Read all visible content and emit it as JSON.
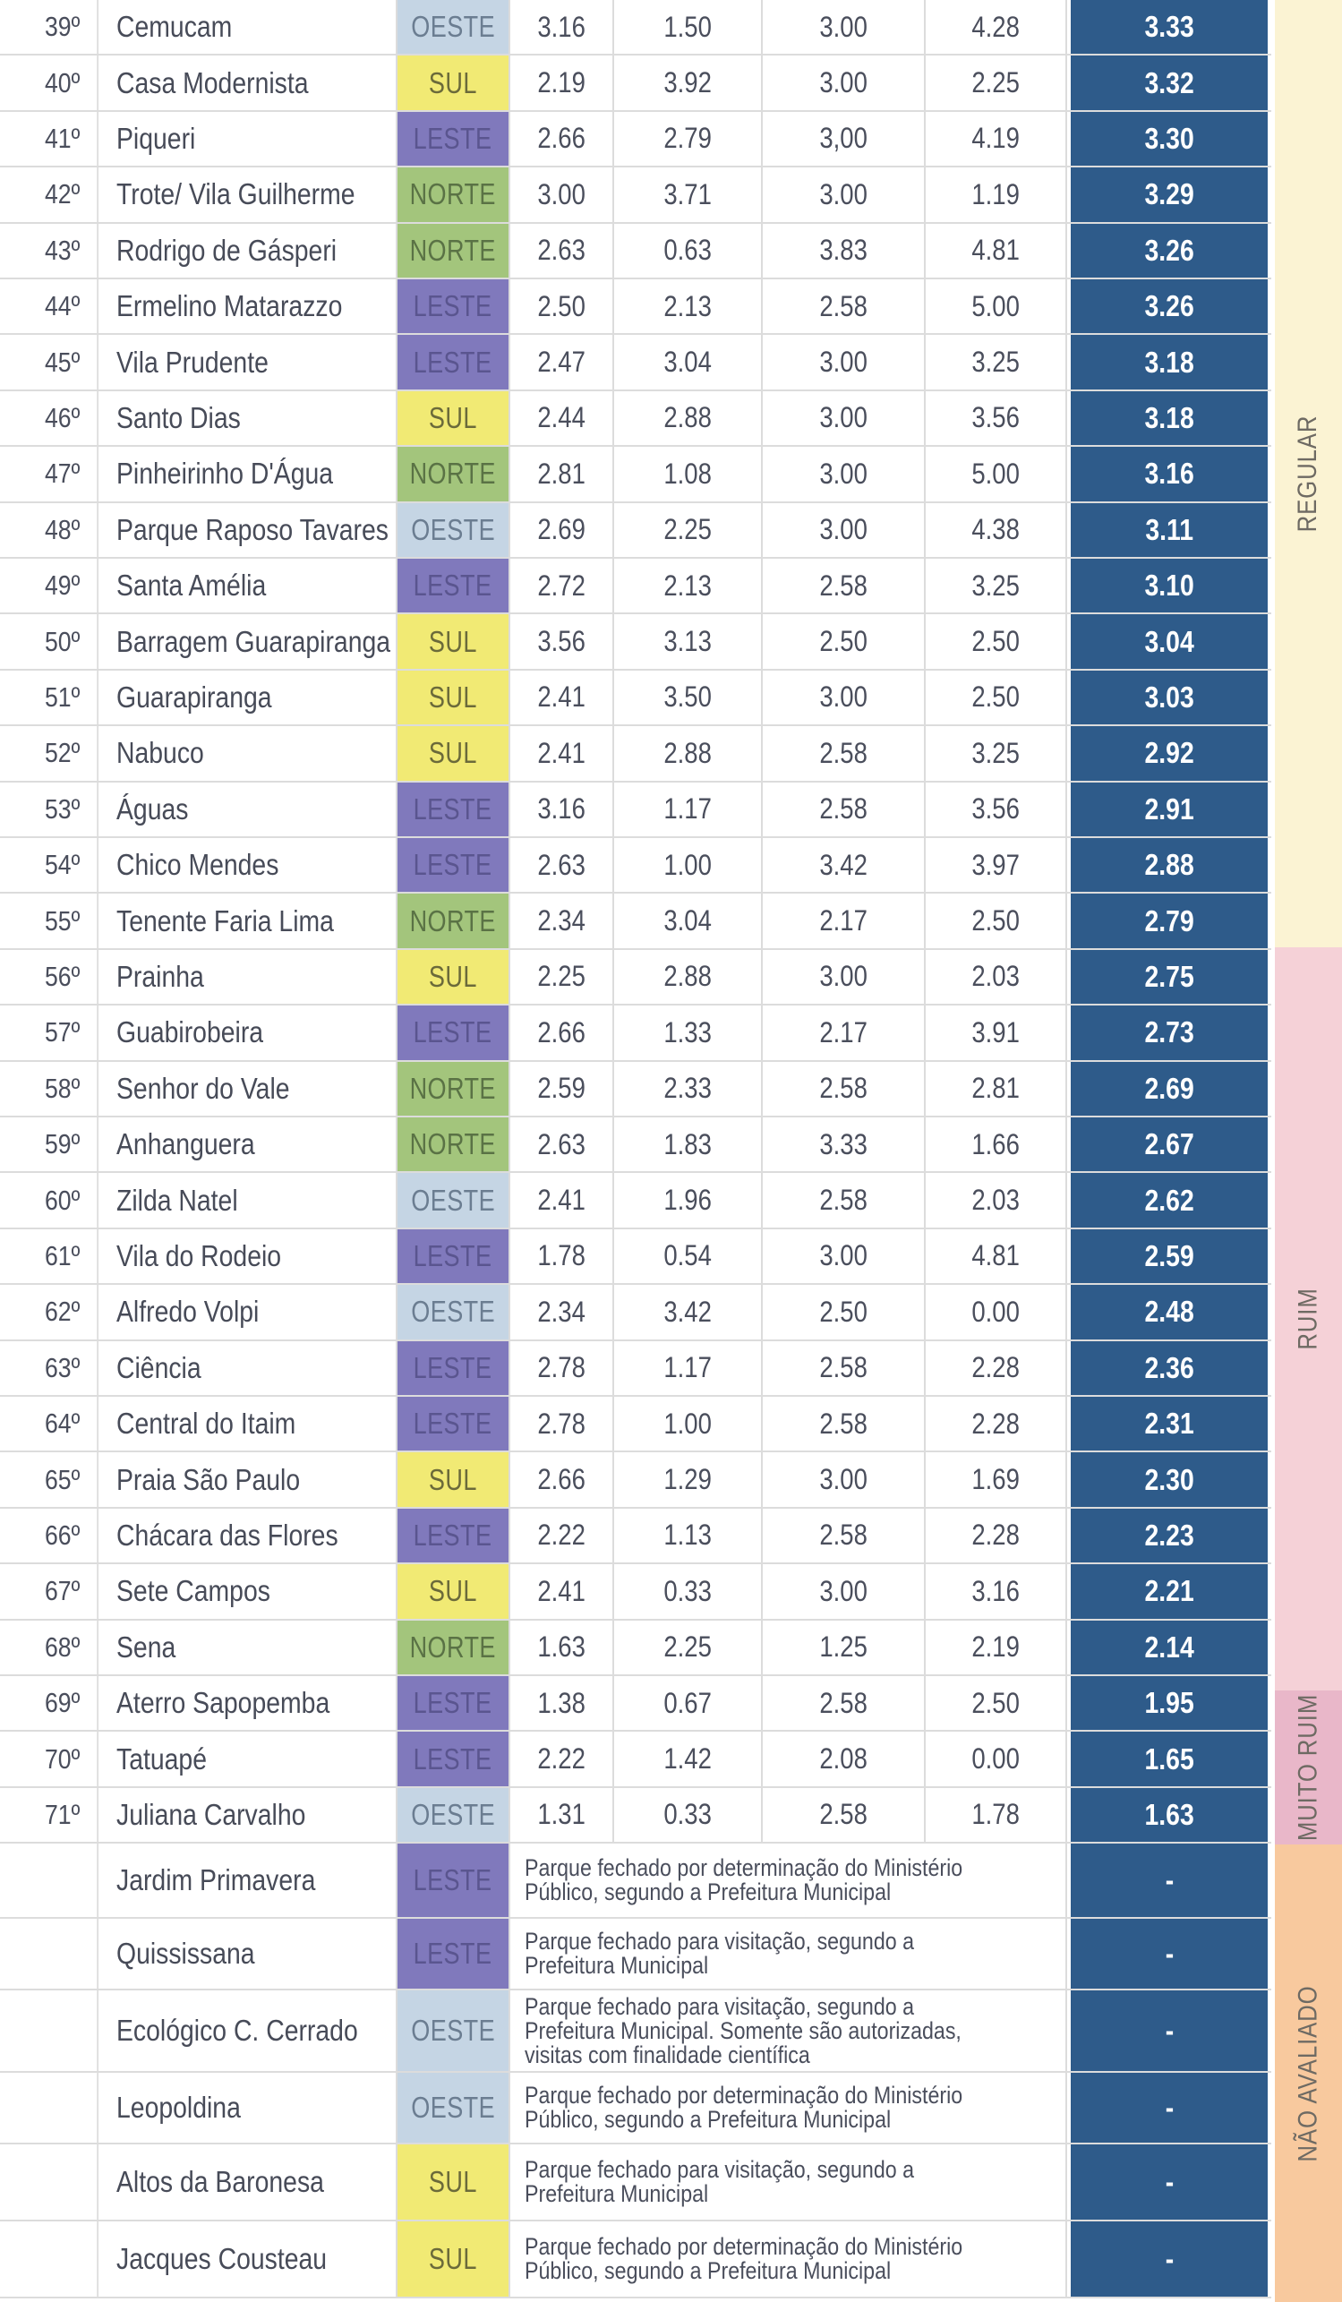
{
  "colors": {
    "oeste": "#c5d5e4",
    "sul": "#f1ea74",
    "leste": "#8079bc",
    "norte": "#a3c57c",
    "total_cell": "#2e5b8a",
    "band_regular": "#fbf3d3",
    "band_ruim": "#f5d1d7",
    "band_muito_ruim": "#e9b7c9",
    "band_nao_avaliado": "#f8c99e"
  },
  "ranked_rows": [
    {
      "rank": "39º",
      "name": "Cemucam",
      "zone": "OESTE",
      "zone_class": "oeste",
      "s1": "3.16",
      "s2": "1.50",
      "s3": "3.00",
      "s4": "4.28",
      "total": "3.33"
    },
    {
      "rank": "40º",
      "name": "Casa Modernista",
      "zone": "SUL",
      "zone_class": "sul",
      "s1": "2.19",
      "s2": "3.92",
      "s3": "3.00",
      "s4": "2.25",
      "total": "3.32"
    },
    {
      "rank": "41º",
      "name": "Piqueri",
      "zone": "LESTE",
      "zone_class": "leste",
      "s1": "2.66",
      "s2": "2.79",
      "s3": "3,00",
      "s4": "4.19",
      "total": "3.30"
    },
    {
      "rank": "42º",
      "name": "Trote/ Vila Guilherme",
      "zone": "NORTE",
      "zone_class": "norte",
      "s1": "3.00",
      "s2": "3.71",
      "s3": "3.00",
      "s4": "1.19",
      "total": "3.29"
    },
    {
      "rank": "43º",
      "name": "Rodrigo de Gásperi",
      "zone": "NORTE",
      "zone_class": "norte",
      "s1": "2.63",
      "s2": "0.63",
      "s3": "3.83",
      "s4": "4.81",
      "total": "3.26"
    },
    {
      "rank": "44º",
      "name": "Ermelino Matarazzo",
      "zone": "LESTE",
      "zone_class": "leste",
      "s1": "2.50",
      "s2": "2.13",
      "s3": "2.58",
      "s4": "5.00",
      "total": "3.26"
    },
    {
      "rank": "45º",
      "name": "Vila Prudente",
      "zone": "LESTE",
      "zone_class": "leste",
      "s1": "2.47",
      "s2": "3.04",
      "s3": "3.00",
      "s4": "3.25",
      "total": "3.18"
    },
    {
      "rank": "46º",
      "name": "Santo Dias",
      "zone": "SUL",
      "zone_class": "sul",
      "s1": "2.44",
      "s2": "2.88",
      "s3": "3.00",
      "s4": "3.56",
      "total": "3.18"
    },
    {
      "rank": "47º",
      "name": "Pinheirinho D'Água",
      "zone": "NORTE",
      "zone_class": "norte",
      "s1": "2.81",
      "s2": "1.08",
      "s3": "3.00",
      "s4": "5.00",
      "total": "3.16"
    },
    {
      "rank": "48º",
      "name": "Parque Raposo Tavares",
      "zone": "OESTE",
      "zone_class": "oeste",
      "s1": "2.69",
      "s2": "2.25",
      "s3": "3.00",
      "s4": "4.38",
      "total": "3.11"
    },
    {
      "rank": "49º",
      "name": "Santa Amélia",
      "zone": "LESTE",
      "zone_class": "leste",
      "s1": "2.72",
      "s2": "2.13",
      "s3": "2.58",
      "s4": "3.25",
      "total": "3.10"
    },
    {
      "rank": "50º",
      "name": "Barragem Guarapiranga",
      "zone": "SUL",
      "zone_class": "sul",
      "s1": "3.56",
      "s2": "3.13",
      "s3": "2.50",
      "s4": "2.50",
      "total": "3.04"
    },
    {
      "rank": "51º",
      "name": "Guarapiranga",
      "zone": "SUL",
      "zone_class": "sul",
      "s1": "2.41",
      "s2": "3.50",
      "s3": "3.00",
      "s4": "2.50",
      "total": "3.03"
    },
    {
      "rank": "52º",
      "name": "Nabuco",
      "zone": "SUL",
      "zone_class": "sul",
      "s1": "2.41",
      "s2": "2.88",
      "s3": "2.58",
      "s4": "3.25",
      "total": "2.92"
    },
    {
      "rank": "53º",
      "name": "Águas",
      "zone": "LESTE",
      "zone_class": "leste",
      "s1": "3.16",
      "s2": "1.17",
      "s3": "2.58",
      "s4": "3.56",
      "total": "2.91"
    },
    {
      "rank": "54º",
      "name": "Chico Mendes",
      "zone": "LESTE",
      "zone_class": "leste",
      "s1": "2.63",
      "s2": "1.00",
      "s3": "3.42",
      "s4": "3.97",
      "total": "2.88"
    },
    {
      "rank": "55º",
      "name": "Tenente Faria Lima",
      "zone": "NORTE",
      "zone_class": "norte",
      "s1": "2.34",
      "s2": "3.04",
      "s3": "2.17",
      "s4": "2.50",
      "total": "2.79"
    },
    {
      "rank": "56º",
      "name": "Prainha",
      "zone": "SUL",
      "zone_class": "sul",
      "s1": "2.25",
      "s2": "2.88",
      "s3": "3.00",
      "s4": "2.03",
      "total": "2.75"
    },
    {
      "rank": "57º",
      "name": "Guabirobeira",
      "zone": "LESTE",
      "zone_class": "leste",
      "s1": "2.66",
      "s2": "1.33",
      "s3": "2.17",
      "s4": "3.91",
      "total": "2.73"
    },
    {
      "rank": "58º",
      "name": "Senhor do Vale",
      "zone": "NORTE",
      "zone_class": "norte",
      "s1": "2.59",
      "s2": "2.33",
      "s3": "2.58",
      "s4": "2.81",
      "total": "2.69"
    },
    {
      "rank": "59º",
      "name": "Anhanguera",
      "zone": "NORTE",
      "zone_class": "norte",
      "s1": "2.63",
      "s2": "1.83",
      "s3": "3.33",
      "s4": "1.66",
      "total": "2.67"
    },
    {
      "rank": "60º",
      "name": "Zilda Natel",
      "zone": "OESTE",
      "zone_class": "oeste",
      "s1": "2.41",
      "s2": "1.96",
      "s3": "2.58",
      "s4": "2.03",
      "total": "2.62"
    },
    {
      "rank": "61º",
      "name": "Vila do Rodeio",
      "zone": "LESTE",
      "zone_class": "leste",
      "s1": "1.78",
      "s2": "0.54",
      "s3": "3.00",
      "s4": "4.81",
      "total": "2.59"
    },
    {
      "rank": "62º",
      "name": "Alfredo Volpi",
      "zone": "OESTE",
      "zone_class": "oeste",
      "s1": "2.34",
      "s2": "3.42",
      "s3": "2.50",
      "s4": "0.00",
      "total": "2.48"
    },
    {
      "rank": "63º",
      "name": "Ciência",
      "zone": "LESTE",
      "zone_class": "leste",
      "s1": "2.78",
      "s2": "1.17",
      "s3": "2.58",
      "s4": "2.28",
      "total": "2.36"
    },
    {
      "rank": "64º",
      "name": "Central do Itaim",
      "zone": "LESTE",
      "zone_class": "leste",
      "s1": "2.78",
      "s2": "1.00",
      "s3": "2.58",
      "s4": "2.28",
      "total": "2.31"
    },
    {
      "rank": "65º",
      "name": "Praia São Paulo",
      "zone": "SUL",
      "zone_class": "sul",
      "s1": "2.66",
      "s2": "1.29",
      "s3": "3.00",
      "s4": "1.69",
      "total": "2.30"
    },
    {
      "rank": "66º",
      "name": "Chácara das Flores",
      "zone": "LESTE",
      "zone_class": "leste",
      "s1": "2.22",
      "s2": "1.13",
      "s3": "2.58",
      "s4": "2.28",
      "total": "2.23"
    },
    {
      "rank": "67º",
      "name": "Sete Campos",
      "zone": "SUL",
      "zone_class": "sul",
      "s1": "2.41",
      "s2": "0.33",
      "s3": "3.00",
      "s4": "3.16",
      "total": "2.21"
    },
    {
      "rank": "68º",
      "name": "Sena",
      "zone": "NORTE",
      "zone_class": "norte",
      "s1": "1.63",
      "s2": "2.25",
      "s3": "1.25",
      "s4": "2.19",
      "total": "2.14"
    },
    {
      "rank": "69º",
      "name": "Aterro Sapopemba",
      "zone": "LESTE",
      "zone_class": "leste",
      "s1": "1.38",
      "s2": "0.67",
      "s3": "2.58",
      "s4": "2.50",
      "total": "1.95"
    },
    {
      "rank": "70º",
      "name": "Tatuapé",
      "zone": "LESTE",
      "zone_class": "leste",
      "s1": "2.22",
      "s2": "1.42",
      "s3": "2.08",
      "s4": "0.00",
      "total": "1.65"
    },
    {
      "rank": "71º",
      "name": "Juliana Carvalho",
      "zone": "OESTE",
      "zone_class": "oeste",
      "s1": "1.31",
      "s2": "0.33",
      "s3": "2.58",
      "s4": "1.78",
      "total": "1.63"
    }
  ],
  "unranked_rows": [
    {
      "name": "Jardim Primavera",
      "zone": "LESTE",
      "zone_class": "leste",
      "note": "Parque fechado por determinação do Ministério Público, segundo a Prefeitura Municipal",
      "total": "-"
    },
    {
      "name": "Quississana",
      "zone": "LESTE",
      "zone_class": "leste",
      "note": "Parque fechado para visitação, segundo a Prefeitura Municipal",
      "total": "-"
    },
    {
      "name": "Ecológico C. Cerrado",
      "zone": "OESTE",
      "zone_class": "oeste",
      "note": "Parque fechado para visitação, segundo a Prefeitura Municipal. Somente são autorizadas, visitas com finalidade científica",
      "total": "-"
    },
    {
      "name": "Leopoldina",
      "zone": "OESTE",
      "zone_class": "oeste",
      "note": "Parque fechado por determinação do Ministério Público, segundo a Prefeitura Municipal",
      "total": "-"
    },
    {
      "name": "Altos da Baronesa",
      "zone": "SUL",
      "zone_class": "sul",
      "note": "Parque fechado para visitação, segundo a Prefeitura Municipal",
      "total": "-"
    },
    {
      "name": "Jacques Cousteau",
      "zone": "SUL",
      "zone_class": "sul",
      "note": "Parque fechado por determinação do Ministério Público, segundo a Prefeitura Municipal",
      "total": "-"
    }
  ],
  "bands": [
    {
      "label": "REGULAR",
      "key": "band_regular"
    },
    {
      "label": "RUIM",
      "key": "band_ruim"
    },
    {
      "label": "MUITO RUIM",
      "key": "band_muito_ruim"
    },
    {
      "label": "NÃO AVALIADO",
      "key": "band_nao_avaliado"
    }
  ]
}
